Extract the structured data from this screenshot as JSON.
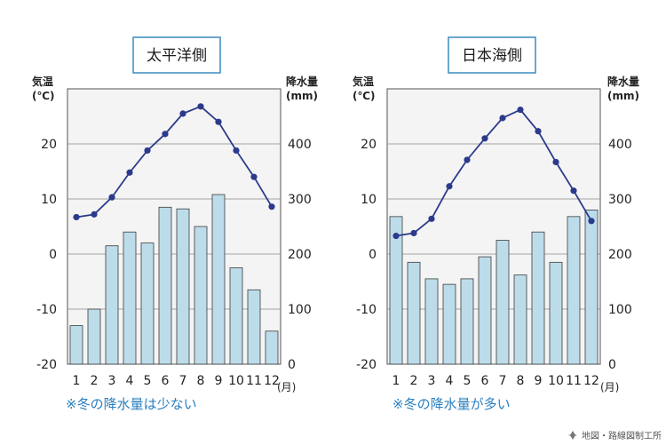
{
  "chart_data": [
    {
      "type": "bar+line",
      "title": "太平洋側",
      "left_axis_label": [
        "気温",
        "(℃)"
      ],
      "right_axis_label": [
        "降水量",
        "(mm)"
      ],
      "categories": [
        "1",
        "2",
        "3",
        "4",
        "5",
        "6",
        "7",
        "8",
        "9",
        "10",
        "11",
        "12"
      ],
      "x_unit": "(月)",
      "temperature_range": [
        -20,
        30
      ],
      "temperature_ticks": [
        "20",
        "10",
        "0",
        "-10",
        "-20"
      ],
      "precipitation_range": [
        0,
        500
      ],
      "precipitation_ticks": [
        "400",
        "300",
        "200",
        "100",
        "0"
      ],
      "series": [
        {
          "kind": "bar",
          "axis": "right",
          "values": [
            70,
            100,
            215,
            240,
            220,
            285,
            282,
            250,
            308,
            175,
            135,
            60
          ]
        },
        {
          "kind": "line",
          "axis": "left",
          "values": [
            6.7,
            7.2,
            10.3,
            14.8,
            18.8,
            21.8,
            25.5,
            26.8,
            24.0,
            18.8,
            14.0,
            8.6
          ]
        }
      ],
      "note": "※冬の降水量は少ない",
      "bar_color": "#bcdcea",
      "line_color": "#2b3a8c"
    },
    {
      "type": "bar+line",
      "title": "日本海側",
      "left_axis_label": [
        "気温",
        "(℃)"
      ],
      "right_axis_label": [
        "降水量",
        "(mm)"
      ],
      "categories": [
        "1",
        "2",
        "3",
        "4",
        "5",
        "6",
        "7",
        "8",
        "9",
        "10",
        "11",
        "12"
      ],
      "x_unit": "(月)",
      "temperature_range": [
        -20,
        30
      ],
      "temperature_ticks": [
        "20",
        "10",
        "0",
        "-10",
        "-20"
      ],
      "precipitation_range": [
        0,
        500
      ],
      "precipitation_ticks": [
        "400",
        "300",
        "200",
        "100",
        "0"
      ],
      "series": [
        {
          "kind": "bar",
          "axis": "right",
          "values": [
            268,
            185,
            155,
            145,
            155,
            195,
            225,
            162,
            240,
            185,
            268,
            280
          ]
        },
        {
          "kind": "line",
          "axis": "left",
          "values": [
            3.3,
            3.8,
            6.4,
            12.3,
            17.1,
            21.0,
            24.7,
            26.2,
            22.3,
            16.7,
            11.5,
            6.0
          ]
        }
      ],
      "note": "※冬の降水量が多い",
      "bar_color": "#bcdcea",
      "line_color": "#2b3a8c"
    }
  ],
  "credit": "地図・路線図制工所"
}
